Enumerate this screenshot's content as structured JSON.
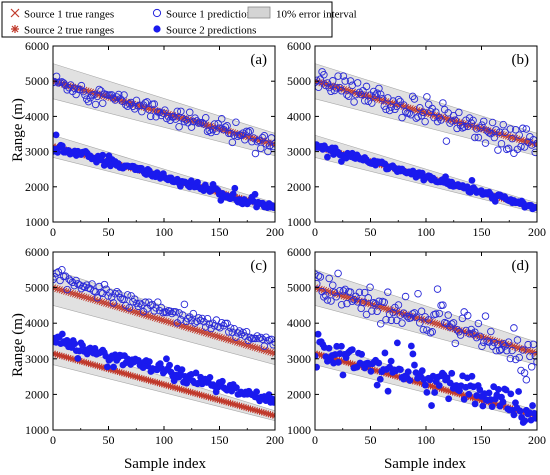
{
  "legend": {
    "items": [
      {
        "label": "Source 1 true ranges",
        "marker": "x",
        "color": "#c0392b"
      },
      {
        "label": "Source 2 true ranges",
        "marker": "star",
        "color": "#c0392b"
      },
      {
        "label": "Source 1 predictions",
        "marker": "circle-open",
        "color": "#2222dd"
      },
      {
        "label": "Source 2 predictions",
        "marker": "circle-filled",
        "color": "#1a1aee"
      },
      {
        "label": "10% error interval",
        "marker": "band",
        "color": "#d4d4d4"
      }
    ]
  },
  "ylabel": "Range (m)",
  "xlabel": "Sample index",
  "colors": {
    "true_line": "#c0392b",
    "pred_open": "#2a2ad8",
    "pred_filled": "#1a1aee",
    "band_fill": "#dcdcdc",
    "band_edge": "#9a9a9a"
  },
  "chart_data": [
    {
      "panel_label": "(a)",
      "type": "scatter",
      "xlim": [
        0,
        200
      ],
      "ylim": [
        1000,
        6000
      ],
      "xticks": [
        0,
        50,
        100,
        150,
        200
      ],
      "yticks": [
        1000,
        2000,
        3000,
        4000,
        5000,
        6000
      ],
      "true_ranges": [
        {
          "name": "Source 1 true ranges",
          "start": 5000,
          "end": 3200
        },
        {
          "name": "Source 2 true ranges",
          "start": 3150,
          "end": 1400
        }
      ],
      "predictions": [
        {
          "name": "Source 1 predictions",
          "noise": 120,
          "outlier_rate": 0.08,
          "outlier_spread": 400
        },
        {
          "name": "Source 2 predictions",
          "noise": 60,
          "outlier_rate": 0.06,
          "outlier_spread": 350
        }
      ]
    },
    {
      "panel_label": "(b)",
      "type": "scatter",
      "xlim": [
        0,
        200
      ],
      "ylim": [
        1000,
        6000
      ],
      "xticks": [
        0,
        50,
        100,
        150,
        200
      ],
      "yticks": [
        1000,
        2000,
        3000,
        4000,
        5000,
        6000
      ],
      "true_ranges": [
        {
          "name": "Source 1 true ranges",
          "start": 5000,
          "end": 3200
        },
        {
          "name": "Source 2 true ranges",
          "start": 3150,
          "end": 1400
        }
      ],
      "predictions": [
        {
          "name": "Source 1 predictions",
          "noise": 180,
          "outlier_rate": 0.1,
          "outlier_spread": 500
        },
        {
          "name": "Source 2 predictions",
          "noise": 50,
          "outlier_rate": 0.03,
          "outlier_spread": 250
        }
      ]
    },
    {
      "panel_label": "(c)",
      "type": "scatter",
      "xlim": [
        0,
        200
      ],
      "ylim": [
        1000,
        6000
      ],
      "xticks": [
        0,
        50,
        100,
        150,
        200
      ],
      "yticks": [
        1000,
        2000,
        3000,
        4000,
        5000,
        6000
      ],
      "true_ranges": [
        {
          "name": "Source 1 true ranges",
          "start": 5000,
          "end": 3150
        },
        {
          "name": "Source 2 true ranges",
          "start": 3150,
          "end": 1400
        }
      ],
      "predictions": [
        {
          "name": "Source 1 predictions",
          "noise": 90,
          "offset": 300,
          "outlier_rate": 0.04,
          "outlier_spread": 300
        },
        {
          "name": "Source 2 predictions",
          "noise": 90,
          "offset": 380,
          "outlier_rate": 0.04,
          "outlier_spread": 350
        }
      ]
    },
    {
      "panel_label": "(d)",
      "type": "scatter",
      "xlim": [
        0,
        200
      ],
      "ylim": [
        1000,
        6000
      ],
      "xticks": [
        0,
        50,
        100,
        150,
        200
      ],
      "yticks": [
        1000,
        2000,
        3000,
        4000,
        5000,
        6000
      ],
      "true_ranges": [
        {
          "name": "Source 1 true ranges",
          "start": 5000,
          "end": 3150
        },
        {
          "name": "Source 2 true ranges",
          "start": 3150,
          "end": 1400
        }
      ],
      "predictions": [
        {
          "name": "Source 1 predictions",
          "noise": 220,
          "offset": 0,
          "outlier_rate": 0.15,
          "outlier_spread": 700
        },
        {
          "name": "Source 2 predictions",
          "noise": 200,
          "offset": 150,
          "outlier_rate": 0.12,
          "outlier_spread": 600
        }
      ]
    }
  ]
}
